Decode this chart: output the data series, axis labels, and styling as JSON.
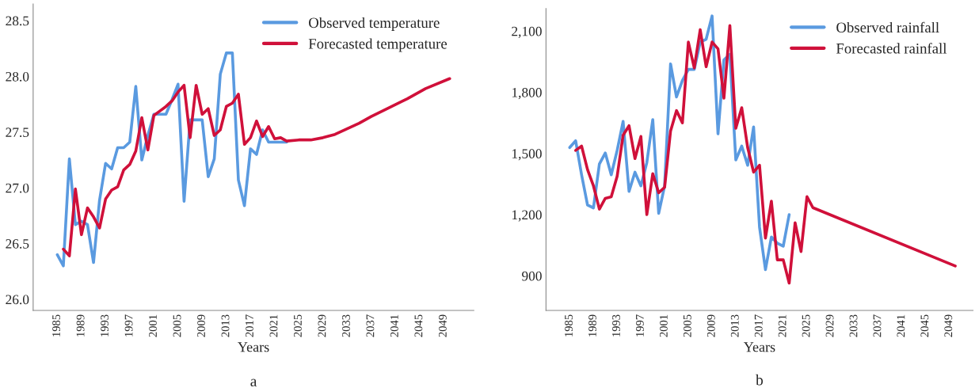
{
  "chart_data": [
    {
      "type": "line",
      "xlabel": "Years",
      "annotations": [
        "a"
      ],
      "legend": "top right",
      "grid": false,
      "xlim": [
        1981,
        2054
      ],
      "xticks": [
        1985,
        1989,
        1993,
        1997,
        2001,
        2005,
        2009,
        2013,
        2017,
        2021,
        2025,
        2029,
        2033,
        2037,
        2041,
        2045,
        2049
      ],
      "ylim": [
        25.9,
        28.65
      ],
      "yticks": [
        {
          "value": 26.0,
          "label": "26.0"
        },
        {
          "value": 26.5,
          "label": "26.5"
        },
        {
          "value": 27.0,
          "label": "27.0"
        },
        {
          "value": 27.5,
          "label": "27.5"
        },
        {
          "value": 28.0,
          "label": "28.0"
        },
        {
          "value": 28.5,
          "label": "28.5"
        }
      ],
      "series": [
        {
          "name": "Observed temperature",
          "color": "#5a9ae0",
          "x": [
            1985,
            1986,
            1987,
            1988,
            1989,
            1990,
            1991,
            1992,
            1993,
            1994,
            1995,
            1996,
            1997,
            1998,
            1999,
            2000,
            2001,
            2002,
            2003,
            2004,
            2005,
            2006,
            2007,
            2008,
            2009,
            2010,
            2011,
            2012,
            2013,
            2014,
            2015,
            2016,
            2017,
            2018,
            2019,
            2020,
            2021,
            2022,
            2023
          ],
          "values": [
            26.4,
            26.3,
            27.26,
            26.67,
            26.7,
            26.67,
            26.33,
            26.89,
            27.22,
            27.17,
            27.36,
            27.36,
            27.41,
            27.91,
            27.25,
            27.47,
            27.66,
            27.66,
            27.66,
            27.79,
            27.93,
            26.88,
            27.61,
            27.61,
            27.61,
            27.1,
            27.26,
            28.02,
            28.21,
            28.21,
            27.07,
            26.84,
            27.35,
            27.3,
            27.52,
            27.41,
            27.41,
            27.41,
            27.41
          ]
        },
        {
          "name": "Forecasted temperature",
          "color": "#d0103a",
          "x": [
            1986,
            1987,
            1988,
            1989,
            1990,
            1991,
            1992,
            1993,
            1994,
            1995,
            1996,
            1997,
            1998,
            1999,
            2000,
            2001,
            2002,
            2003,
            2004,
            2005,
            2006,
            2007,
            2008,
            2009,
            2010,
            2011,
            2012,
            2013,
            2014,
            2015,
            2016,
            2017,
            2018,
            2019,
            2020,
            2021,
            2022,
            2023,
            2025,
            2027,
            2029,
            2031,
            2033,
            2035,
            2037,
            2040,
            2043,
            2046,
            2050
          ],
          "values": [
            26.45,
            26.39,
            26.99,
            26.58,
            26.82,
            26.74,
            26.64,
            26.9,
            26.98,
            27.01,
            27.16,
            27.21,
            27.33,
            27.63,
            27.34,
            27.65,
            27.69,
            27.73,
            27.78,
            27.86,
            27.92,
            27.45,
            27.92,
            27.66,
            27.71,
            27.47,
            27.52,
            27.73,
            27.76,
            27.84,
            27.39,
            27.45,
            27.6,
            27.46,
            27.55,
            27.44,
            27.45,
            27.42,
            27.43,
            27.43,
            27.45,
            27.48,
            27.53,
            27.58,
            27.64,
            27.72,
            27.8,
            27.89,
            27.98
          ]
        }
      ]
    },
    {
      "type": "line",
      "xlabel": "Years",
      "annotations": [
        "b"
      ],
      "legend": "top right",
      "grid": false,
      "xlim": [
        1981,
        2053
      ],
      "xticks": [
        1985,
        1989,
        1993,
        1997,
        2001,
        2005,
        2009,
        2013,
        2017,
        2021,
        2025,
        2029,
        2033,
        2037,
        2041,
        2045,
        2049
      ],
      "ylim": [
        730,
        2210
      ],
      "yticks": [
        {
          "value": 900,
          "label": "900"
        },
        {
          "value": 1200,
          "label": "1,200"
        },
        {
          "value": 1500,
          "label": "1,500"
        },
        {
          "value": 1800,
          "label": "1,800"
        },
        {
          "value": 2100,
          "label": "2,100"
        }
      ],
      "series": [
        {
          "name": "Observed rainfall",
          "color": "#5a9ae0",
          "x": [
            1985,
            1986,
            1987,
            1988,
            1989,
            1990,
            1991,
            1992,
            1993,
            1994,
            1995,
            1996,
            1997,
            1998,
            1999,
            2000,
            2001,
            2002,
            2003,
            2004,
            2005,
            2006,
            2007,
            2008,
            2009,
            2010,
            2011,
            2012,
            2013,
            2014,
            2015,
            2016,
            2017,
            2018,
            2019,
            2020,
            2021,
            2022
          ],
          "values": [
            1529,
            1562,
            1395,
            1247,
            1233,
            1448,
            1502,
            1395,
            1515,
            1657,
            1314,
            1408,
            1341,
            1455,
            1666,
            1206,
            1341,
            1939,
            1777,
            1858,
            1912,
            1912,
            2046,
            2060,
            2174,
            1596,
            1959,
            1986,
            1468,
            1536,
            1442,
            1630,
            1139,
            930,
            1090,
            1060,
            1045,
            1200
          ]
        },
        {
          "name": "Forecasted rainfall",
          "color": "#d0103a",
          "x": [
            1986,
            1987,
            1988,
            1989,
            1990,
            1991,
            1992,
            1993,
            1994,
            1995,
            1996,
            1997,
            1998,
            1999,
            2000,
            2001,
            2002,
            2003,
            2004,
            2005,
            2006,
            2007,
            2008,
            2009,
            2010,
            2011,
            2012,
            2013,
            2014,
            2015,
            2016,
            2017,
            2018,
            2019,
            2020,
            2021,
            2022,
            2023,
            2024,
            2025,
            2026,
            2050
          ],
          "values": [
            1515,
            1536,
            1421,
            1341,
            1227,
            1280,
            1287,
            1388,
            1589,
            1636,
            1475,
            1583,
            1200,
            1401,
            1307,
            1334,
            1610,
            1710,
            1650,
            2046,
            1919,
            2107,
            1925,
            2046,
            2013,
            1771,
            2127,
            1623,
            1724,
            1529,
            1408,
            1442,
            1085,
            1266,
            978,
            978,
            864,
            1160,
            1019,
            1288,
            1234,
            948
          ]
        }
      ]
    }
  ]
}
